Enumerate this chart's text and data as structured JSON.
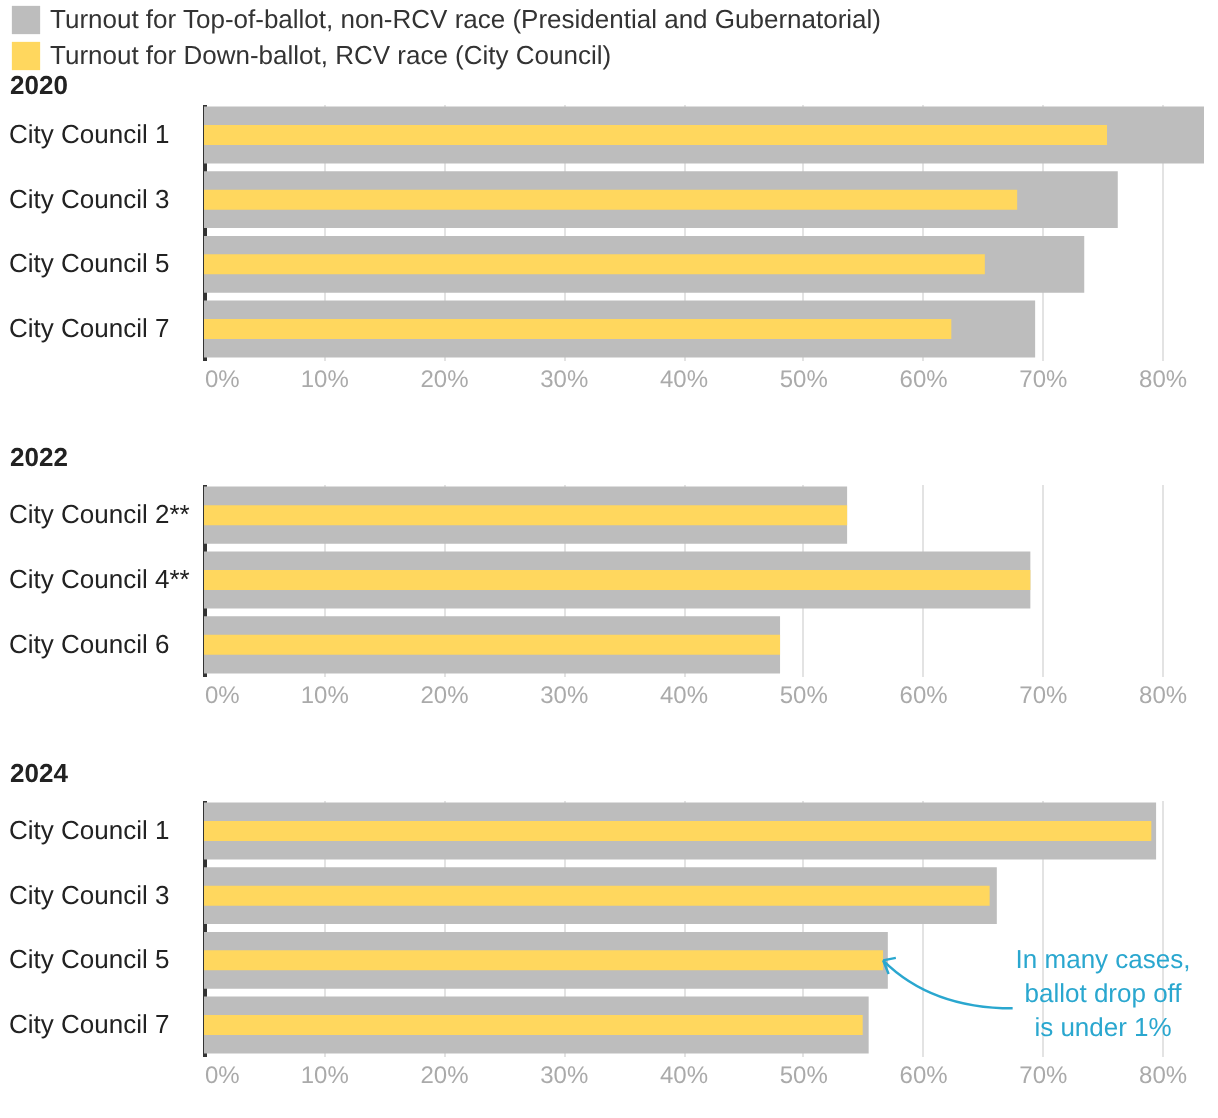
{
  "chart_data": [
    {
      "type": "bar",
      "orientation": "horizontal",
      "title": "2020",
      "categories": [
        "City Council 1",
        "City Council 3",
        "City Council 5",
        "City Council 7"
      ],
      "series": [
        {
          "name": "Turnout for Top-of-ballot, non-RCV race (Presidential and Gubernatorial)",
          "color": "#bdbdbd",
          "values": [
            83.5,
            76.3,
            73.5,
            69.4
          ]
        },
        {
          "name": "Turnout for Down-ballot, RCV race (City Council)",
          "color": "#ffd75e",
          "values": [
            75.4,
            67.9,
            65.2,
            62.4
          ]
        }
      ],
      "xlim": [
        0,
        83.5
      ],
      "xticks": [
        {
          "value": 0,
          "label": "0%"
        },
        {
          "value": 10,
          "label": "10%"
        },
        {
          "value": 20,
          "label": "20%"
        },
        {
          "value": 30,
          "label": "30%"
        },
        {
          "value": 40,
          "label": "40%"
        },
        {
          "value": 50,
          "label": "50%"
        },
        {
          "value": 60,
          "label": "60%"
        },
        {
          "value": 70,
          "label": "70%"
        },
        {
          "value": 80,
          "label": "80%"
        }
      ],
      "grid": "x",
      "legend": "top"
    },
    {
      "type": "bar",
      "orientation": "horizontal",
      "title": "2022",
      "categories": [
        "City Council 2**",
        "City Council 4**",
        "City Council 6"
      ],
      "series": [
        {
          "color": "#bdbdbd",
          "values": [
            53.7,
            69.0,
            48.1
          ]
        },
        {
          "color": "#ffd75e",
          "values": [
            53.7,
            69.0,
            48.1
          ]
        }
      ],
      "xlim": [
        0,
        83.5
      ],
      "xticks": [
        {
          "value": 0,
          "label": "0%"
        },
        {
          "value": 10,
          "label": "10%"
        },
        {
          "value": 20,
          "label": "20%"
        },
        {
          "value": 30,
          "label": "30%"
        },
        {
          "value": 40,
          "label": "40%"
        },
        {
          "value": 50,
          "label": "50%"
        },
        {
          "value": 60,
          "label": "60%"
        },
        {
          "value": 70,
          "label": "70%"
        },
        {
          "value": 80,
          "label": "80%"
        }
      ],
      "grid": "x"
    },
    {
      "type": "bar",
      "orientation": "horizontal",
      "title": "2024",
      "categories": [
        "City Council 1",
        "City Council 3",
        "City Council 5",
        "City Council 7"
      ],
      "series": [
        {
          "color": "#bdbdbd",
          "values": [
            79.5,
            66.2,
            57.1,
            55.5
          ]
        },
        {
          "color": "#ffd75e",
          "values": [
            79.1,
            65.6,
            56.7,
            55.0
          ]
        }
      ],
      "xlim": [
        0,
        83.5
      ],
      "xticks": [
        {
          "value": 0,
          "label": "0%"
        },
        {
          "value": 10,
          "label": "10%"
        },
        {
          "value": 20,
          "label": "20%"
        },
        {
          "value": 30,
          "label": "30%"
        },
        {
          "value": 40,
          "label": "40%"
        },
        {
          "value": 50,
          "label": "50%"
        },
        {
          "value": 60,
          "label": "60%"
        },
        {
          "value": 70,
          "label": "70%"
        },
        {
          "value": 80,
          "label": "80%"
        }
      ],
      "grid": "x",
      "annotations": [
        {
          "text": "In many cases,\nballot drop off\nis under 1%",
          "x": 56.7,
          "y": "City Council 5"
        }
      ]
    }
  ]
}
